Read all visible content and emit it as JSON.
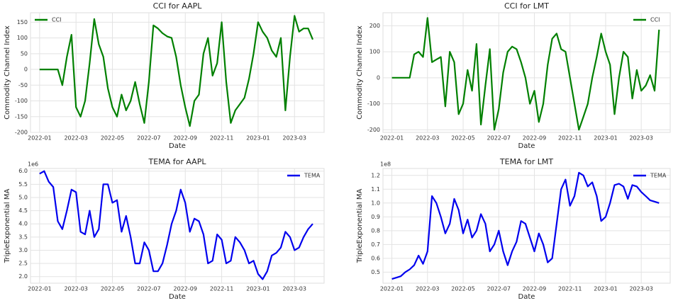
{
  "chart_data": [
    {
      "type": "line",
      "title": "CCI for AAPL",
      "x_label": "Date",
      "y_label": "Commodity Channel Index",
      "categories": [
        "2022-01",
        null,
        null,
        null,
        null,
        null,
        null,
        null,
        "2022-03",
        null,
        null,
        null,
        null,
        null,
        null,
        null,
        "2022-05",
        null,
        null,
        null,
        null,
        null,
        null,
        null,
        "2022-07",
        null,
        null,
        null,
        null,
        null,
        null,
        null,
        "2022-09",
        null,
        null,
        null,
        null,
        null,
        null,
        null,
        "2022-11",
        null,
        null,
        null,
        null,
        null,
        null,
        null,
        "2023-01",
        null,
        null,
        null,
        null,
        null,
        null,
        null,
        "2023-03",
        null,
        null,
        null,
        null
      ],
      "series": [
        {
          "name": "CCI",
          "color": "#008000",
          "values": [
            0,
            0,
            0,
            0,
            0,
            -50,
            40,
            110,
            -120,
            -150,
            -100,
            20,
            160,
            80,
            40,
            -60,
            -120,
            -150,
            -80,
            -130,
            -100,
            -40,
            -110,
            -170,
            -40,
            140,
            130,
            115,
            105,
            100,
            40,
            -50,
            -120,
            -180,
            -100,
            -80,
            50,
            100,
            -20,
            20,
            150,
            -40,
            -170,
            -130,
            -110,
            -90,
            -30,
            50,
            150,
            120,
            100,
            60,
            40,
            100,
            -130,
            40,
            170,
            120,
            130,
            130,
            95
          ]
        }
      ],
      "ylim": [
        -200,
        180
      ],
      "yticks": [
        -200,
        -150,
        -100,
        -50,
        0,
        50,
        100,
        150
      ],
      "grid": true,
      "legend": "upper left"
    },
    {
      "type": "line",
      "title": "CCI for LMT",
      "x_label": "Date",
      "y_label": "Commodity Channel Index",
      "categories": [
        "2022-01",
        null,
        null,
        null,
        null,
        null,
        null,
        null,
        "2022-03",
        null,
        null,
        null,
        null,
        null,
        null,
        null,
        "2022-05",
        null,
        null,
        null,
        null,
        null,
        null,
        null,
        "2022-07",
        null,
        null,
        null,
        null,
        null,
        null,
        null,
        "2022-09",
        null,
        null,
        null,
        null,
        null,
        null,
        null,
        "2022-11",
        null,
        null,
        null,
        null,
        null,
        null,
        null,
        "2023-01",
        null,
        null,
        null,
        null,
        null,
        null,
        null,
        "2023-03",
        null,
        null,
        null,
        null
      ],
      "series": [
        {
          "name": "CCI",
          "color": "#008000",
          "values": [
            0,
            0,
            0,
            0,
            0,
            90,
            100,
            80,
            230,
            60,
            70,
            80,
            -110,
            100,
            60,
            -140,
            -100,
            30,
            -50,
            130,
            -180,
            -30,
            110,
            -200,
            -120,
            20,
            100,
            120,
            110,
            60,
            0,
            -100,
            -50,
            -170,
            -100,
            50,
            150,
            170,
            110,
            100,
            0,
            -100,
            -200,
            -150,
            -100,
            0,
            80,
            170,
            100,
            50,
            -140,
            0,
            100,
            80,
            -80,
            30,
            -50,
            -30,
            10,
            -50,
            185
          ]
        }
      ],
      "ylim": [
        -210,
        250
      ],
      "yticks": [
        -200,
        -100,
        0,
        100,
        200
      ],
      "grid": true,
      "legend": "upper right"
    },
    {
      "type": "line",
      "title": "TEMA for AAPL",
      "x_label": "Date",
      "y_label": "TripleExponential MA",
      "offset_label": "1e6",
      "categories": [
        "2022-01",
        null,
        null,
        null,
        null,
        null,
        null,
        null,
        "2022-03",
        null,
        null,
        null,
        null,
        null,
        null,
        null,
        "2022-05",
        null,
        null,
        null,
        null,
        null,
        null,
        null,
        "2022-07",
        null,
        null,
        null,
        null,
        null,
        null,
        null,
        "2022-09",
        null,
        null,
        null,
        null,
        null,
        null,
        null,
        "2022-11",
        null,
        null,
        null,
        null,
        null,
        null,
        null,
        "2023-01",
        null,
        null,
        null,
        null,
        null,
        null,
        null,
        "2023-03",
        null,
        null,
        null,
        null
      ],
      "series": [
        {
          "name": "TEMA",
          "color": "#0000ee",
          "values": [
            5.9,
            6.0,
            5.6,
            5.4,
            4.1,
            3.8,
            4.5,
            5.3,
            5.2,
            3.7,
            3.6,
            4.5,
            3.5,
            3.8,
            5.5,
            5.5,
            4.8,
            4.9,
            3.7,
            4.3,
            3.5,
            2.5,
            2.5,
            3.3,
            3.0,
            2.2,
            2.2,
            2.5,
            3.2,
            4.0,
            4.5,
            5.3,
            4.8,
            3.7,
            4.2,
            4.1,
            3.6,
            2.5,
            2.6,
            3.6,
            3.4,
            2.5,
            2.6,
            3.5,
            3.3,
            3.0,
            2.5,
            2.6,
            2.1,
            1.9,
            2.2,
            2.8,
            2.9,
            3.1,
            3.7,
            3.5,
            3.0,
            3.1,
            3.5,
            3.8,
            4.0
          ]
        }
      ],
      "ylim": [
        1.75,
        6.1
      ],
      "yticks": [
        {
          "value": 2,
          "label": "2.0"
        },
        {
          "value": 2.5,
          "label": "2.5"
        },
        {
          "value": 3,
          "label": "3.0"
        },
        {
          "value": 3.5,
          "label": "3.5"
        },
        {
          "value": 4,
          "label": "4.0"
        },
        {
          "value": 4.5,
          "label": "4.5"
        },
        {
          "value": 5,
          "label": "5.0"
        },
        {
          "value": 5.5,
          "label": "5.5"
        },
        {
          "value": 6,
          "label": "6.0"
        }
      ],
      "grid": true,
      "legend": "upper right"
    },
    {
      "type": "line",
      "title": "TEMA for LMT",
      "x_label": "Date",
      "y_label": "TripleExponential MA",
      "offset_label": "1e8",
      "categories": [
        "2022-01",
        null,
        null,
        null,
        null,
        null,
        null,
        null,
        "2022-03",
        null,
        null,
        null,
        null,
        null,
        null,
        null,
        "2022-05",
        null,
        null,
        null,
        null,
        null,
        null,
        null,
        "2022-07",
        null,
        null,
        null,
        null,
        null,
        null,
        null,
        "2022-09",
        null,
        null,
        null,
        null,
        null,
        null,
        null,
        "2022-11",
        null,
        null,
        null,
        null,
        null,
        null,
        null,
        "2023-01",
        null,
        null,
        null,
        null,
        null,
        null,
        null,
        "2023-03",
        null,
        null,
        null,
        null
      ],
      "series": [
        {
          "name": "TEMA",
          "color": "#0000ee",
          "values": [
            0.45,
            0.46,
            0.47,
            0.5,
            0.52,
            0.55,
            0.62,
            0.56,
            0.65,
            1.05,
            1.0,
            0.9,
            0.78,
            0.85,
            1.03,
            0.95,
            0.78,
            0.88,
            0.75,
            0.8,
            0.92,
            0.85,
            0.65,
            0.7,
            0.8,
            0.65,
            0.55,
            0.65,
            0.72,
            0.87,
            0.85,
            0.75,
            0.65,
            0.78,
            0.7,
            0.57,
            0.6,
            0.85,
            1.1,
            1.17,
            0.98,
            1.05,
            1.22,
            1.2,
            1.12,
            1.15,
            1.05,
            0.87,
            0.9,
            1.0,
            1.13,
            1.14,
            1.12,
            1.03,
            1.13,
            1.12,
            1.08,
            1.05,
            1.02,
            1.01,
            1.0
          ]
        }
      ],
      "ylim": [
        0.42,
        1.25
      ],
      "yticks": [
        0.5,
        0.6,
        0.7,
        0.8,
        0.9,
        {
          "value": 1,
          "label": "1.0"
        },
        1.1,
        1.2
      ],
      "grid": true,
      "legend": "upper right"
    }
  ]
}
